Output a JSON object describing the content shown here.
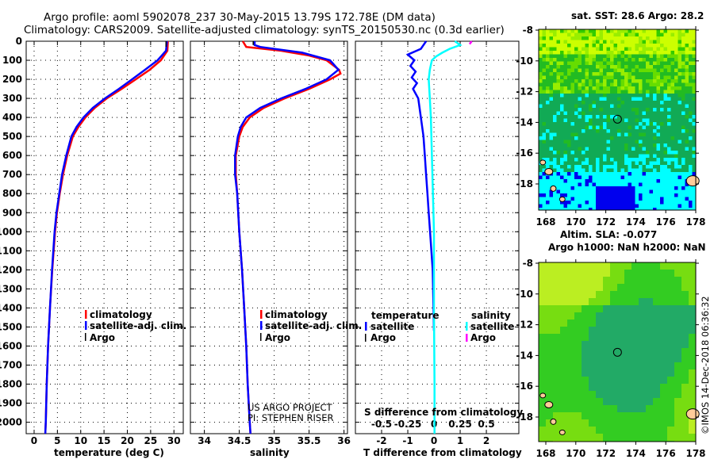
{
  "title": {
    "line1": "Argo profile: aoml 5902078_237 30-May-2015 13.79S 172.78E (DM data)",
    "line2": "Climatology: CARS2009. Satellite-adjusted climatology: synTS_20150530.nc (0.3d earlier)"
  },
  "copyright": "©IMOS 14-Dec-2018 06:36:32",
  "colors": {
    "clim": "#ff0000",
    "sat": "#0000ff",
    "argo": "#000000",
    "sal_sat": "#00ffff",
    "sal_argo": "#ff00ff"
  },
  "chart_data": [
    {
      "type": "line",
      "name": "temperature",
      "xlabel": "temperature (deg C)",
      "xticks": [
        0,
        5,
        10,
        15,
        20,
        25,
        30
      ],
      "xlim": [
        -1.7,
        32
      ],
      "yticks": [
        0,
        100,
        200,
        300,
        400,
        500,
        600,
        700,
        800,
        900,
        1000,
        1100,
        1200,
        1300,
        1400,
        1500,
        1600,
        1700,
        1800,
        1900,
        2000
      ],
      "ylim": [
        0,
        2060
      ],
      "grid": true,
      "legend": {
        "placement": "lower-left",
        "entries": [
          "climatology",
          "satellite-adj. clim.",
          "Argo"
        ]
      },
      "series": [
        {
          "name": "climatology",
          "color": "#ff0000",
          "depth": [
            0,
            50,
            100,
            150,
            200,
            250,
            300,
            350,
            400,
            450,
            500,
            600,
            700,
            800,
            900,
            1000,
            1200,
            1400,
            1600,
            1800,
            2000,
            2060
          ],
          "values": [
            28.7,
            28.6,
            27.2,
            24.8,
            21.8,
            18.8,
            15.6,
            13.0,
            11.0,
            9.5,
            8.3,
            7.1,
            6.2,
            5.5,
            4.9,
            4.5,
            3.9,
            3.4,
            3.0,
            2.7,
            2.5,
            2.4
          ]
        },
        {
          "name": "satellite-adj. clim.",
          "color": "#0000ff",
          "depth": [
            0,
            50,
            100,
            150,
            200,
            250,
            300,
            350,
            400,
            450,
            500,
            600,
            700,
            800,
            900,
            1000,
            1200,
            1400,
            1600,
            1800,
            2000,
            2060
          ],
          "values": [
            28.5,
            28.3,
            26.5,
            23.8,
            21.0,
            18.2,
            15.2,
            12.6,
            10.6,
            9.1,
            8.0,
            6.9,
            6.0,
            5.4,
            4.8,
            4.4,
            3.85,
            3.4,
            3.0,
            2.7,
            2.5,
            2.4
          ]
        },
        {
          "name": "Argo",
          "color": "#000000",
          "depth": [
            0,
            30
          ],
          "values": [
            28.3,
            28.3
          ]
        }
      ]
    },
    {
      "type": "line",
      "name": "salinity",
      "xlabel": "salinity",
      "xticks": [
        34,
        34.5,
        35,
        35.5,
        36
      ],
      "xlim": [
        33.8,
        36.05
      ],
      "ylim": [
        0,
        2060
      ],
      "grid": true,
      "legend": {
        "placement": "lower-left",
        "entries": [
          "climatology",
          "satellite-adj. clim.",
          "Argo"
        ]
      },
      "annotation": [
        "US ARGO PROJECT",
        "PI: STEPHEN RISER"
      ],
      "series": [
        {
          "name": "climatology",
          "color": "#ff0000",
          "depth": [
            0,
            30,
            50,
            75,
            100,
            150,
            170,
            200,
            250,
            300,
            350,
            400,
            450,
            500,
            600,
            700,
            800,
            1000,
            1200,
            1400,
            1600,
            1800,
            2000,
            2060
          ],
          "values": [
            34.55,
            34.6,
            35.1,
            35.5,
            35.75,
            35.93,
            35.95,
            35.8,
            35.5,
            35.15,
            34.85,
            34.65,
            34.55,
            34.5,
            34.45,
            34.45,
            34.47,
            34.5,
            34.54,
            34.57,
            34.6,
            34.62,
            34.65,
            34.66
          ]
        },
        {
          "name": "satellite-adj. clim.",
          "color": "#0000ff",
          "depth": [
            0,
            20,
            30,
            60,
            100,
            150,
            200,
            250,
            300,
            350,
            400,
            450,
            500,
            600,
            700,
            800,
            1000,
            1200,
            1400,
            1600,
            1800,
            2000,
            2060
          ],
          "values": [
            34.72,
            34.72,
            34.8,
            35.4,
            35.8,
            35.92,
            35.75,
            35.45,
            35.1,
            34.8,
            34.6,
            34.52,
            34.48,
            34.44,
            34.44,
            34.47,
            34.5,
            34.54,
            34.57,
            34.6,
            34.62,
            34.65,
            34.66
          ]
        },
        {
          "name": "Argo",
          "color": "#000000",
          "depth": [
            0,
            20
          ],
          "values": [
            34.7,
            34.7
          ]
        }
      ]
    },
    {
      "type": "line",
      "name": "difference",
      "xlabel": "T difference from climatology",
      "xlabel2": "S difference from climatology",
      "xticks": [
        -2,
        -1,
        0,
        1,
        2
      ],
      "xticks2": [
        "-0.5",
        "-0.25",
        "0",
        "0.25",
        "0.5"
      ],
      "xticks2_values": [
        -0.5,
        -0.25,
        0,
        0.25,
        0.5
      ],
      "xlim": [
        -3,
        3.24
      ],
      "ylim": [
        0,
        2060
      ],
      "grid": true,
      "legend": {
        "temperature_header": "temperature",
        "salinity_header": "salinity",
        "entries": [
          "satellite",
          "Argo"
        ]
      },
      "series": [
        {
          "name": "T satellite",
          "color": "#0000ff",
          "depth": [
            0,
            20,
            40,
            70,
            100,
            130,
            160,
            190,
            220,
            250,
            300,
            400,
            500,
            600,
            700,
            800,
            900,
            1000,
            1200,
            1400,
            1520
          ],
          "values": [
            -0.3,
            -0.4,
            -0.5,
            -1.0,
            -0.75,
            -0.9,
            -0.7,
            -0.85,
            -0.65,
            -0.8,
            -0.6,
            -0.5,
            -0.4,
            -0.35,
            -0.3,
            -0.25,
            -0.2,
            -0.15,
            -0.05,
            -0.02,
            0
          ]
        },
        {
          "name": "S satellite",
          "color": "#00ffff",
          "scale": "S",
          "depth": [
            0,
            20,
            40,
            60,
            80,
            100,
            150,
            200,
            300,
            400,
            600,
            800,
            1000,
            1400,
            1800,
            2060
          ],
          "values": [
            0.2,
            0.25,
            0.15,
            0.08,
            0.02,
            -0.02,
            -0.04,
            -0.05,
            -0.04,
            -0.03,
            -0.02,
            -0.01,
            0,
            0,
            0.005,
            0.005
          ]
        },
        {
          "name": "S Argo",
          "color": "#ff00ff",
          "scale": "S",
          "depth": [
            0,
            15
          ],
          "values": [
            0.36,
            0.34
          ]
        }
      ]
    },
    {
      "type": "heatmap",
      "name": "sst-map",
      "title": "sat. SST: 28.6 Argo: 28.2",
      "xticks": [
        168,
        170,
        172,
        174,
        176,
        178
      ],
      "yticks": [
        -8,
        -10,
        -12,
        -14,
        -16,
        -18
      ],
      "profile_location": [
        172.78,
        -13.79
      ]
    },
    {
      "type": "heatmap",
      "name": "sla-map",
      "title": "Altim. SLA: -0.077",
      "subtitle": "Argo h1000: NaN h2000: NaN",
      "xticks": [
        168,
        170,
        172,
        174,
        176,
        178
      ],
      "yticks": [
        -8,
        -10,
        -12,
        -14,
        -16,
        -18
      ],
      "profile_location": [
        172.78,
        -13.79
      ]
    }
  ]
}
